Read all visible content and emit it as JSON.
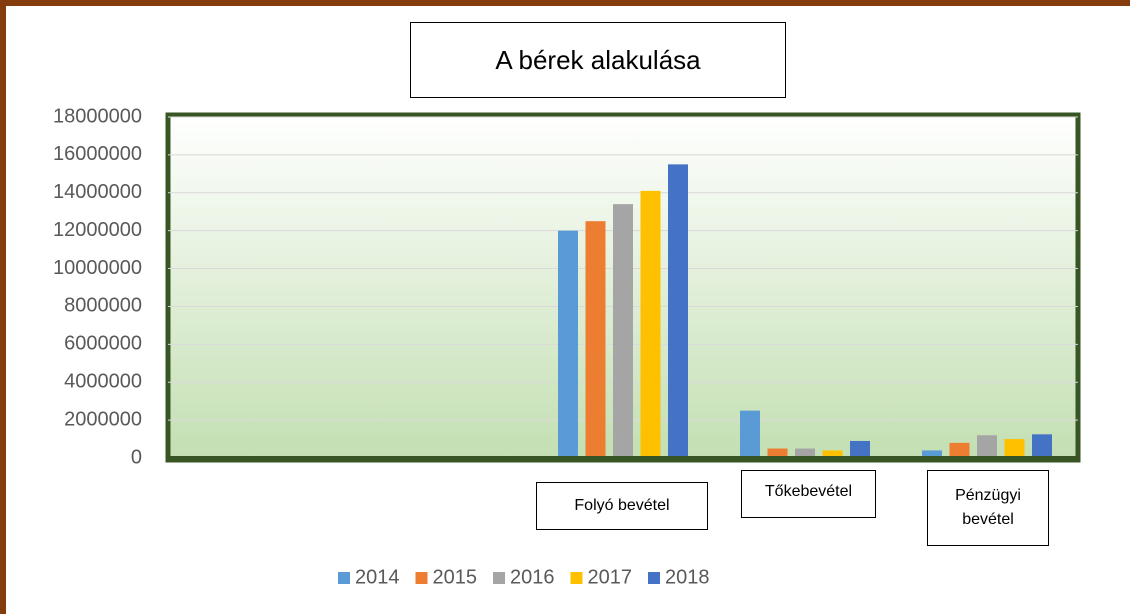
{
  "chart_data": {
    "type": "bar",
    "title": "A bérek alakulása",
    "categories": [
      null,
      null,
      "Folyó bevétel",
      "Tőkebevétel",
      "Pénzügyi bevétel"
    ],
    "series": [
      {
        "name": "2014",
        "color": "#5b9bd5",
        "values": [
          null,
          null,
          12000000,
          2500000,
          400000
        ]
      },
      {
        "name": "2015",
        "color": "#ed7d31",
        "values": [
          null,
          null,
          12500000,
          500000,
          800000
        ]
      },
      {
        "name": "2016",
        "color": "#a5a5a5",
        "values": [
          null,
          null,
          13400000,
          500000,
          1200000
        ]
      },
      {
        "name": "2017",
        "color": "#ffc000",
        "values": [
          null,
          null,
          14100000,
          400000,
          1000000
        ]
      },
      {
        "name": "2018",
        "color": "#4472c4",
        "values": [
          null,
          null,
          15500000,
          900000,
          1250000
        ]
      }
    ],
    "ylim": [
      0,
      18000000
    ],
    "yticks": [
      0,
      2000000,
      4000000,
      6000000,
      8000000,
      10000000,
      12000000,
      14000000,
      16000000,
      18000000
    ],
    "grid": true,
    "legend": "bottom"
  }
}
